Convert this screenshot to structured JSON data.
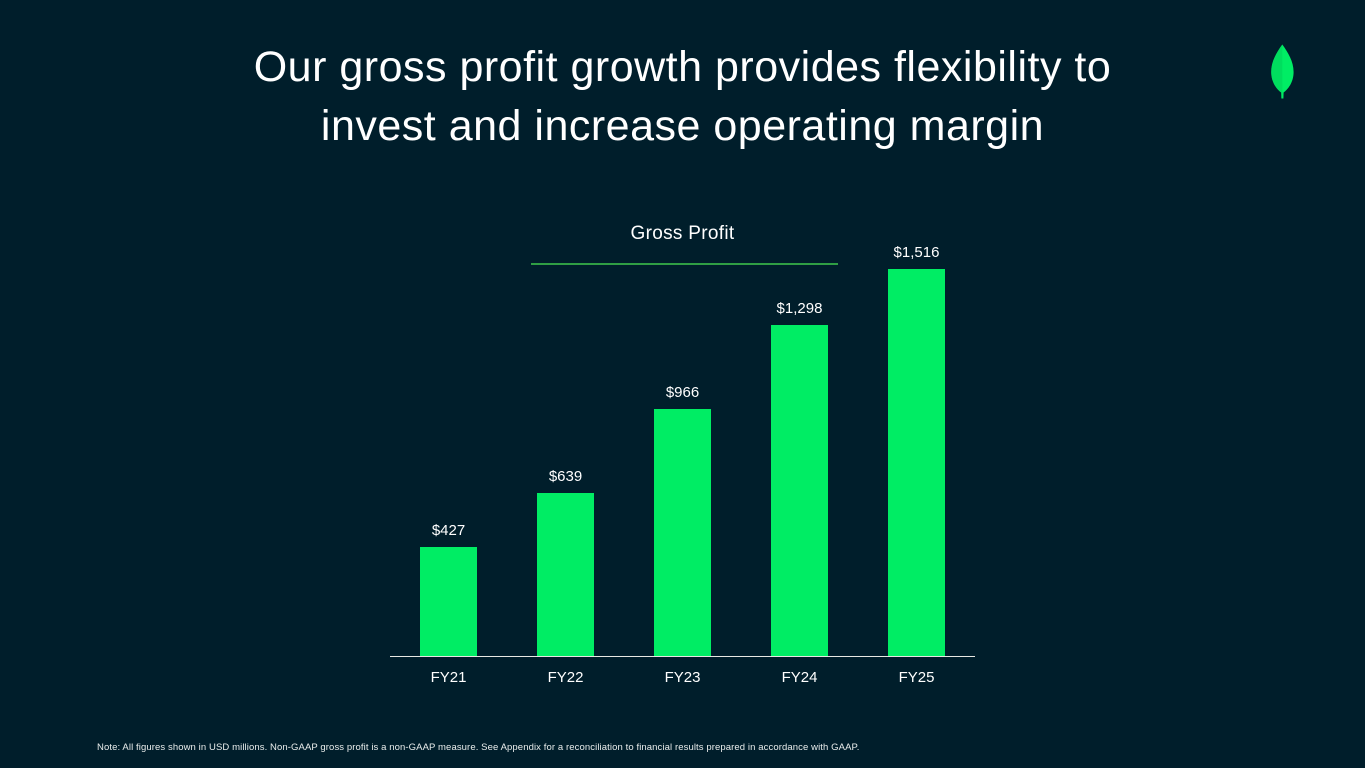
{
  "slide": {
    "title_line1": "Our gross profit growth provides flexibility to",
    "title_line2": "invest and increase operating margin",
    "footnote": "Note: All figures shown in USD millions. Non-GAAP gross profit is a non-GAAP measure. See Appendix for a reconciliation to financial results prepared in accordance with GAAP."
  },
  "icons": {
    "logo": "mongodb-leaf-icon"
  },
  "colors": {
    "background": "#001E2B",
    "bar_green": "#00ED64",
    "underline_green": "#2F9E44",
    "text_white": "#FFFFFF",
    "axis_line": "#E8E8E3"
  },
  "chart_data": {
    "type": "bar",
    "title": "Gross Profit",
    "categories": [
      "FY21",
      "FY22",
      "FY23",
      "FY24",
      "FY25"
    ],
    "values": [
      427,
      639,
      966,
      1298,
      1516
    ],
    "value_labels": [
      "$427",
      "$639",
      "$966",
      "$1,298",
      "$1,516"
    ],
    "xlabel": "",
    "ylabel": "",
    "ylim": [
      0,
      1516
    ],
    "grid": false,
    "legend": false,
    "bar_color": "#00ED64",
    "background": "#001E2B"
  }
}
